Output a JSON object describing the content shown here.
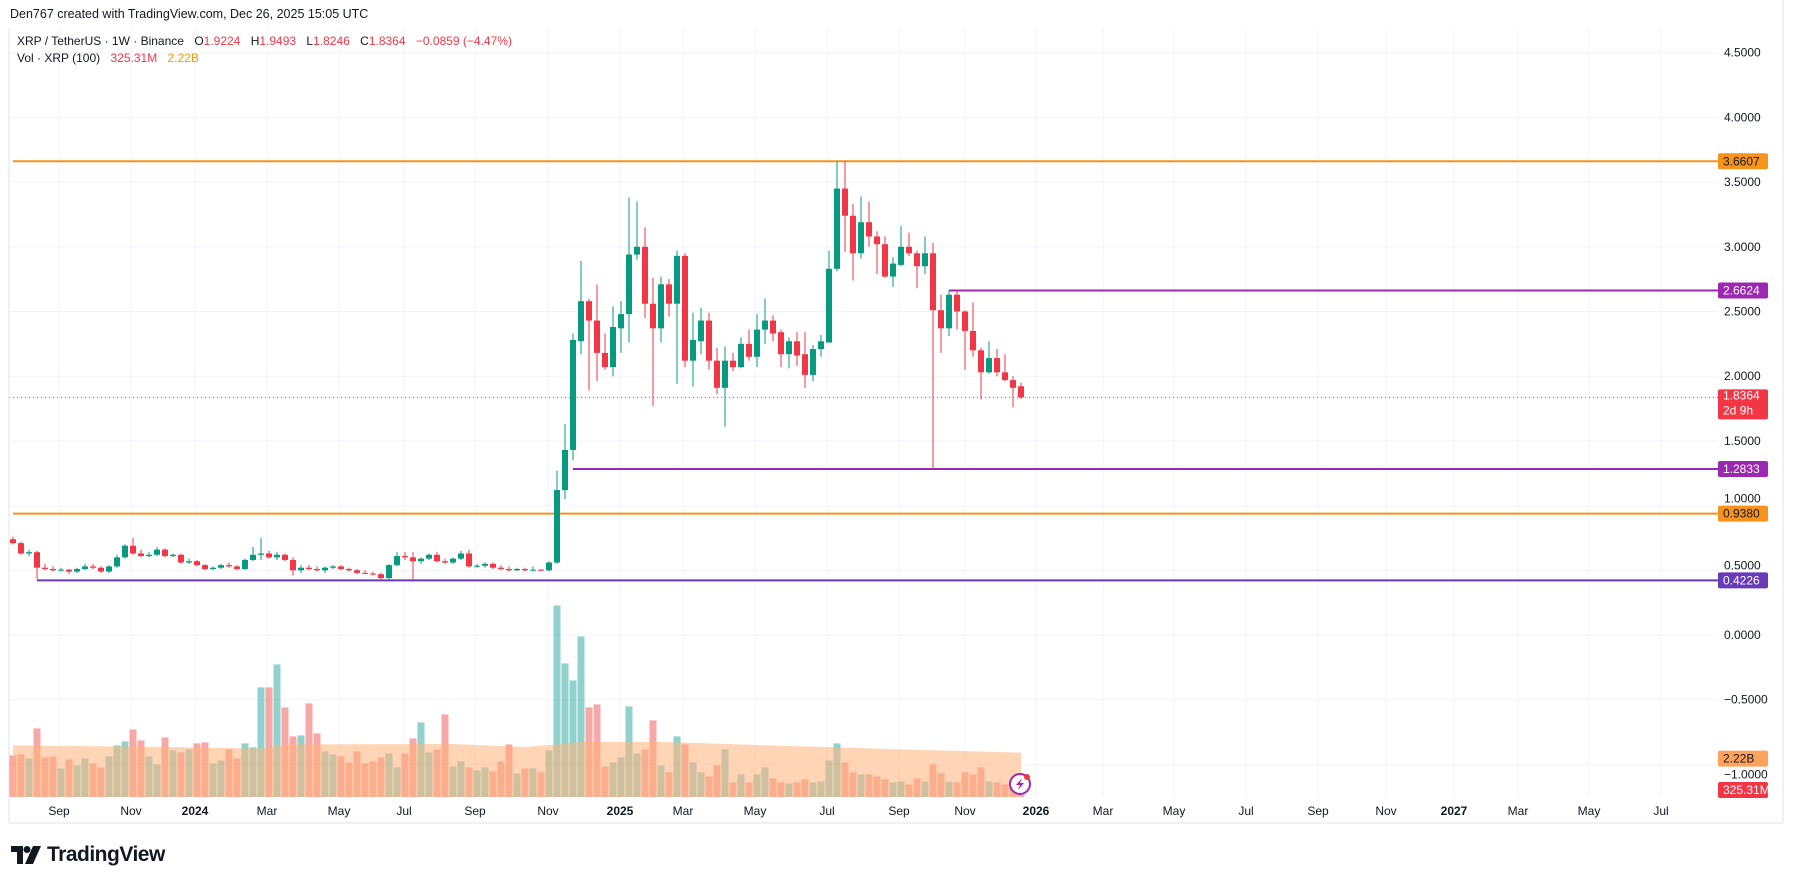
{
  "header": {
    "attribution": "Den767 created with TradingView.com, Dec 26, 2025 15:05 UTC"
  },
  "legend": {
    "symbol": "XRP / TetherUS · 1W · Binance",
    "open_label": "O",
    "open": "1.9224",
    "high_label": "H",
    "high": "1.9493",
    "low_label": "L",
    "low": "1.8246",
    "close_label": "C",
    "close": "1.8364",
    "change": "−0.0859 (−4.47%)",
    "volume_title": "Vol · XRP (100)",
    "volume_value": "325.31M",
    "volume_ma_value": "2.22B"
  },
  "logo": {
    "text": "TradingView"
  },
  "colors": {
    "up": "#089981",
    "down": "#f23645",
    "orange_level": "#f7931a",
    "purple_level": "#9c27b0",
    "deep_purple_level": "#673ab7",
    "volume_ma_fill": "#ffb27a"
  },
  "chart_data": {
    "type": "candlestick",
    "timeframe": "1W",
    "x_axis": {
      "labels": [
        "Sep",
        "Nov",
        "2024",
        "Mar",
        "May",
        "Jul",
        "Sep",
        "Nov",
        "2025",
        "Mar",
        "May",
        "Jul",
        "Sep",
        "Nov",
        "2026",
        "Mar",
        "May",
        "Jul",
        "Sep",
        "Nov",
        "2027",
        "Mar",
        "May",
        "Jul"
      ]
    },
    "y_axis": {
      "range": [
        -1.25,
        4.6
      ],
      "ticks": [
        "4.5000",
        "4.0000",
        "3.5000",
        "3.0000",
        "2.5000",
        "2.0000",
        "1.5000",
        "1.0000",
        "0.5000",
        "0.0000",
        "−0.5000",
        "−1.0000"
      ],
      "tick_values": [
        4.5,
        4.0,
        3.5,
        3.0,
        2.5,
        2.0,
        1.5,
        1.0,
        0.5,
        0.0,
        -0.5,
        -1.0
      ]
    },
    "grid": true,
    "ohlc": [
      [
        0.74,
        0.76,
        0.7,
        0.71
      ],
      [
        0.71,
        0.72,
        0.62,
        0.63
      ],
      [
        0.63,
        0.66,
        0.61,
        0.64
      ],
      [
        0.64,
        0.65,
        0.43,
        0.52
      ],
      [
        0.52,
        0.55,
        0.5,
        0.51
      ],
      [
        0.51,
        0.53,
        0.49,
        0.5
      ],
      [
        0.5,
        0.52,
        0.49,
        0.505
      ],
      [
        0.505,
        0.51,
        0.47,
        0.49
      ],
      [
        0.49,
        0.52,
        0.48,
        0.51
      ],
      [
        0.51,
        0.55,
        0.5,
        0.53
      ],
      [
        0.53,
        0.55,
        0.51,
        0.52
      ],
      [
        0.52,
        0.53,
        0.48,
        0.49
      ],
      [
        0.49,
        0.54,
        0.48,
        0.53
      ],
      [
        0.53,
        0.62,
        0.52,
        0.6
      ],
      [
        0.6,
        0.7,
        0.59,
        0.69
      ],
      [
        0.69,
        0.75,
        0.62,
        0.63
      ],
      [
        0.63,
        0.66,
        0.6,
        0.61
      ],
      [
        0.61,
        0.64,
        0.6,
        0.62
      ],
      [
        0.62,
        0.68,
        0.61,
        0.66
      ],
      [
        0.66,
        0.67,
        0.6,
        0.61
      ],
      [
        0.61,
        0.63,
        0.6,
        0.62
      ],
      [
        0.62,
        0.63,
        0.55,
        0.56
      ],
      [
        0.56,
        0.59,
        0.55,
        0.57
      ],
      [
        0.57,
        0.58,
        0.53,
        0.54
      ],
      [
        0.54,
        0.55,
        0.5,
        0.51
      ],
      [
        0.51,
        0.53,
        0.5,
        0.52
      ],
      [
        0.52,
        0.55,
        0.51,
        0.54
      ],
      [
        0.54,
        0.56,
        0.52,
        0.53
      ],
      [
        0.53,
        0.54,
        0.5,
        0.51
      ],
      [
        0.51,
        0.59,
        0.5,
        0.58
      ],
      [
        0.58,
        0.68,
        0.57,
        0.62
      ],
      [
        0.62,
        0.75,
        0.58,
        0.63
      ],
      [
        0.63,
        0.65,
        0.59,
        0.6
      ],
      [
        0.6,
        0.64,
        0.58,
        0.62
      ],
      [
        0.62,
        0.63,
        0.57,
        0.58
      ],
      [
        0.58,
        0.6,
        0.46,
        0.5
      ],
      [
        0.5,
        0.54,
        0.48,
        0.52
      ],
      [
        0.52,
        0.54,
        0.5,
        0.51
      ],
      [
        0.51,
        0.53,
        0.49,
        0.5
      ],
      [
        0.5,
        0.53,
        0.48,
        0.52
      ],
      [
        0.52,
        0.54,
        0.51,
        0.53
      ],
      [
        0.53,
        0.54,
        0.5,
        0.51
      ],
      [
        0.51,
        0.52,
        0.49,
        0.5
      ],
      [
        0.5,
        0.51,
        0.47,
        0.48
      ],
      [
        0.48,
        0.5,
        0.47,
        0.475
      ],
      [
        0.475,
        0.49,
        0.46,
        0.47
      ],
      [
        0.47,
        0.48,
        0.42,
        0.44
      ],
      [
        0.44,
        0.55,
        0.43,
        0.54
      ],
      [
        0.54,
        0.64,
        0.53,
        0.61
      ],
      [
        0.61,
        0.64,
        0.58,
        0.6
      ],
      [
        0.6,
        0.64,
        0.43,
        0.57
      ],
      [
        0.57,
        0.6,
        0.55,
        0.59
      ],
      [
        0.59,
        0.63,
        0.58,
        0.62
      ],
      [
        0.62,
        0.64,
        0.56,
        0.57
      ],
      [
        0.57,
        0.59,
        0.55,
        0.56
      ],
      [
        0.56,
        0.6,
        0.55,
        0.59
      ],
      [
        0.59,
        0.65,
        0.58,
        0.63
      ],
      [
        0.63,
        0.66,
        0.52,
        0.53
      ],
      [
        0.53,
        0.55,
        0.52,
        0.535
      ],
      [
        0.535,
        0.56,
        0.52,
        0.55
      ],
      [
        0.55,
        0.56,
        0.51,
        0.52
      ],
      [
        0.52,
        0.54,
        0.5,
        0.51
      ],
      [
        0.51,
        0.53,
        0.49,
        0.5
      ],
      [
        0.5,
        0.52,
        0.495,
        0.51
      ],
      [
        0.51,
        0.52,
        0.49,
        0.5
      ],
      [
        0.5,
        0.53,
        0.49,
        0.505
      ],
      [
        0.505,
        0.51,
        0.49,
        0.5
      ],
      [
        0.5,
        0.57,
        0.49,
        0.56
      ],
      [
        0.56,
        1.27,
        0.55,
        1.12
      ],
      [
        1.12,
        1.63,
        1.05,
        1.43
      ],
      [
        1.43,
        2.33,
        1.35,
        2.28
      ],
      [
        2.27,
        2.89,
        2.17,
        2.58
      ],
      [
        2.58,
        2.6,
        1.89,
        2.43
      ],
      [
        2.43,
        2.71,
        1.96,
        2.18
      ],
      [
        2.18,
        2.33,
        2.05,
        2.07
      ],
      [
        2.07,
        2.54,
        2.0,
        2.38
      ],
      [
        2.37,
        2.58,
        2.18,
        2.48
      ],
      [
        2.48,
        3.38,
        2.26,
        2.94
      ],
      [
        2.94,
        3.35,
        2.9,
        3.0
      ],
      [
        3.0,
        3.15,
        2.45,
        2.56
      ],
      [
        2.56,
        2.76,
        1.77,
        2.37
      ],
      [
        2.37,
        2.77,
        2.26,
        2.71
      ],
      [
        2.71,
        2.75,
        2.46,
        2.56
      ],
      [
        2.56,
        2.97,
        1.94,
        2.93
      ],
      [
        2.93,
        2.95,
        2.07,
        2.12
      ],
      [
        2.12,
        2.49,
        1.92,
        2.28
      ],
      [
        2.27,
        2.53,
        2.17,
        2.43
      ],
      [
        2.43,
        2.49,
        2.05,
        2.12
      ],
      [
        2.12,
        2.22,
        1.86,
        1.91
      ],
      [
        1.91,
        2.23,
        1.61,
        2.12
      ],
      [
        2.12,
        2.18,
        2.04,
        2.07
      ],
      [
        2.07,
        2.3,
        2.06,
        2.25
      ],
      [
        2.25,
        2.36,
        2.12,
        2.15
      ],
      [
        2.15,
        2.48,
        2.07,
        2.36
      ],
      [
        2.36,
        2.6,
        2.25,
        2.43
      ],
      [
        2.43,
        2.47,
        2.27,
        2.33
      ],
      [
        2.34,
        2.36,
        2.07,
        2.17
      ],
      [
        2.17,
        2.3,
        2.06,
        2.27
      ],
      [
        2.27,
        2.34,
        2.08,
        2.16
      ],
      [
        2.17,
        2.34,
        1.91,
        2.01
      ],
      [
        2.01,
        2.24,
        1.96,
        2.21
      ],
      [
        2.21,
        2.32,
        2.15,
        2.27
      ],
      [
        2.26,
        2.97,
        2.26,
        2.83
      ],
      [
        2.83,
        3.66,
        2.81,
        3.45
      ],
      [
        3.45,
        3.66,
        2.96,
        3.24
      ],
      [
        3.24,
        3.33,
        2.74,
        2.95
      ],
      [
        2.95,
        3.39,
        2.91,
        3.19
      ],
      [
        3.19,
        3.35,
        3.0,
        3.08
      ],
      [
        3.08,
        3.12,
        2.79,
        3.02
      ],
      [
        3.02,
        3.08,
        2.76,
        2.77
      ],
      [
        2.77,
        2.92,
        2.69,
        2.87
      ],
      [
        2.86,
        3.16,
        2.85,
        3.0
      ],
      [
        3.0,
        3.11,
        2.93,
        2.95
      ],
      [
        2.95,
        2.97,
        2.68,
        2.85
      ],
      [
        2.85,
        3.08,
        2.79,
        2.95
      ],
      [
        2.95,
        3.03,
        1.2833,
        2.51
      ],
      [
        2.51,
        2.63,
        2.18,
        2.37
      ],
      [
        2.37,
        2.6624,
        2.31,
        2.63
      ],
      [
        2.63,
        2.67,
        2.36,
        2.5
      ],
      [
        2.5,
        2.51,
        2.05,
        2.35
      ],
      [
        2.35,
        2.57,
        2.15,
        2.2
      ],
      [
        2.2,
        2.22,
        1.82,
        2.03
      ],
      [
        2.03,
        2.27,
        2.02,
        2.14
      ],
      [
        2.14,
        2.21,
        2.0,
        2.03
      ],
      [
        2.03,
        2.17,
        1.96,
        1.97
      ],
      [
        1.97,
        2.0,
        1.76,
        1.91
      ],
      [
        1.9224,
        1.9493,
        1.8246,
        1.8364
      ]
    ],
    "volume_billions": [
      2.08,
      2.13,
      1.93,
      3.43,
      1.98,
      2.03,
      1.43,
      1.88,
      1.58,
      1.93,
      1.68,
      1.48,
      2.03,
      2.58,
      2.78,
      3.38,
      2.83,
      2.03,
      1.63,
      2.98,
      2.33,
      2.23,
      2.38,
      2.68,
      2.73,
      1.68,
      1.83,
      2.38,
      1.93,
      2.68,
      2.48,
      5.48,
      5.48,
      6.63,
      4.48,
      3.03,
      3.08,
      4.68,
      3.18,
      2.28,
      2.13,
      2.03,
      1.73,
      2.28,
      1.68,
      1.78,
      1.98,
      2.18,
      1.48,
      2.18,
      2.93,
      3.73,
      2.23,
      2.38,
      4.13,
      1.53,
      1.78,
      1.48,
      1.33,
      1.48,
      1.28,
      1.78,
      2.63,
      1.18,
      1.43,
      1.43,
      1.23,
      2.33,
      9.58,
      6.68,
      5.83,
      8.03,
      4.48,
      4.63,
      1.53,
      1.73,
      1.98,
      4.53,
      2.18,
      2.38,
      3.83,
      1.58,
      1.23,
      3.03,
      2.63,
      1.73,
      1.23,
      1.03,
      1.58,
      2.38,
      0.73,
      1.13,
      0.73,
      1.13,
      1.48,
      0.93,
      0.73,
      0.68,
      0.73,
      0.88,
      0.73,
      0.78,
      1.83,
      2.68,
      1.73,
      1.23,
      1.13,
      1.13,
      1.03,
      0.88,
      0.73,
      0.78,
      0.63,
      0.93,
      0.78,
      1.63,
      1.18,
      0.78,
      0.73,
      1.23,
      1.13,
      1.48,
      0.78,
      0.73,
      0.63,
      0.5,
      0.3253
    ],
    "volume_ma_points": [
      [
        0,
        2.58
      ],
      [
        20,
        2.5
      ],
      [
        31,
        2.42
      ],
      [
        34,
        2.63
      ],
      [
        55,
        2.65
      ],
      [
        62,
        2.53
      ],
      [
        64,
        2.5
      ],
      [
        68,
        2.63
      ],
      [
        71,
        2.75
      ],
      [
        81,
        2.75
      ],
      [
        88,
        2.67
      ],
      [
        97,
        2.55
      ],
      [
        102,
        2.5
      ],
      [
        111,
        2.38
      ],
      [
        126,
        2.22
      ]
    ],
    "levels": [
      {
        "value": 3.6607,
        "label": "3.6607",
        "color": "#f7931a",
        "text_color": "#131722",
        "from_bar": 0
      },
      {
        "value": 2.6624,
        "label": "2.6624",
        "color": "#9c27b0",
        "text_color": "#ffffff",
        "from_bar": 117
      },
      {
        "value": 1.2833,
        "label": "1.2833",
        "color": "#9c27b0",
        "text_color": "#ffffff",
        "from_bar": 70
      },
      {
        "value": 0.938,
        "label": "0.9380",
        "color": "#f7931a",
        "text_color": "#131722",
        "from_bar": 0
      },
      {
        "value": 0.4226,
        "label": "0.4226",
        "color": "#673ab7",
        "text_color": "#ffffff",
        "from_bar": 3
      }
    ],
    "last_price": {
      "value": 1.8364,
      "label": "1.8364",
      "countdown": "2d 9h"
    },
    "volume_labels": {
      "ma": "2.22B",
      "last": "325.31M"
    }
  }
}
